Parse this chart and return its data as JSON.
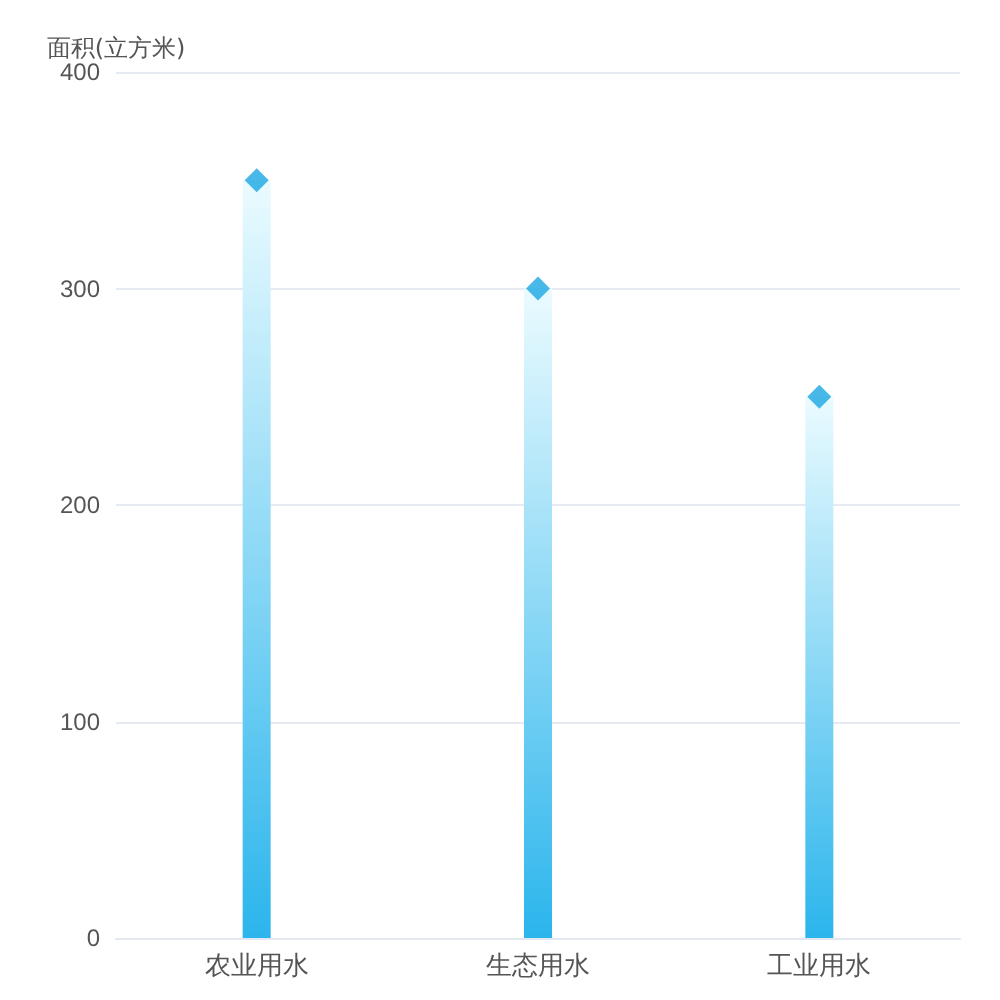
{
  "chart_data": {
    "type": "bar",
    "ylabel": "面积(立方米)",
    "categories": [
      "农业用水",
      "生态用水",
      "工业用水"
    ],
    "series": [
      {
        "color": "#2bb5ec",
        "values": [
          350,
          300,
          250
        ]
      },
      {
        "type": "scatter",
        "x": [
          "农业用水",
          "生态用水",
          "工业用水"
        ],
        "color": "#1aa6e4",
        "values": [
          350,
          300,
          250
        ]
      }
    ],
    "ylim": [
      0,
      400
    ],
    "yticks": [
      0,
      100,
      200,
      300,
      400
    ],
    "grid": "y",
    "marker": "diamond"
  }
}
